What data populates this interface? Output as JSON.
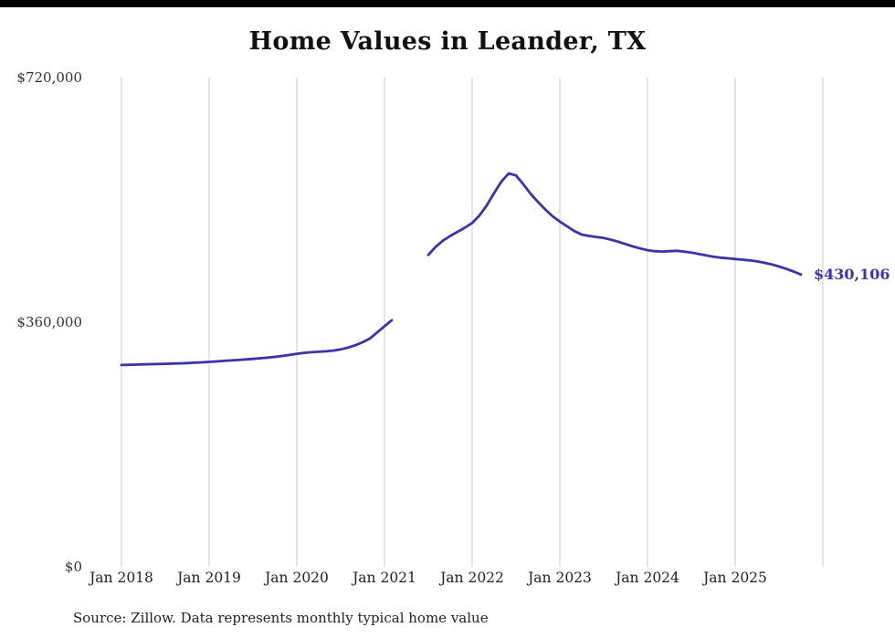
{
  "page": {
    "background": "#ffffff"
  },
  "chart": {
    "title": "Home Values in Leander, TX",
    "source_note": "Source: Zillow. Data represents monthly typical home value",
    "end_label": "$430,106",
    "line_color": "#3b32a8",
    "grid_color": "#cccccc",
    "text_color": "#111111"
  },
  "chart_data": {
    "type": "line",
    "title": "Home Values in Leander, TX",
    "series_name": "Monthly typical home value",
    "legend": "none",
    "grid": "vertical-only",
    "ylim": [
      0,
      720000
    ],
    "y_ticks": [
      {
        "label": "$0",
        "value": 0
      },
      {
        "label": "$360,000",
        "value": 360000
      },
      {
        "label": "$720,000",
        "value": 720000
      }
    ],
    "x_ticks": [
      {
        "label": "Jan 2018",
        "month": "2018-01"
      },
      {
        "label": "Jan 2019",
        "month": "2019-01"
      },
      {
        "label": "Jan 2020",
        "month": "2020-01"
      },
      {
        "label": "Jan 2021",
        "month": "2021-01"
      },
      {
        "label": "Jan 2022",
        "month": "2022-01"
      },
      {
        "label": "Jan 2023",
        "month": "2023-01"
      },
      {
        "label": "Jan 2024",
        "month": "2024-01"
      },
      {
        "label": "Jan 2025",
        "month": "2025-01"
      }
    ],
    "gridlines_at": [
      "2018-01",
      "2019-01",
      "2020-01",
      "2021-01",
      "2022-01",
      "2023-01",
      "2024-01",
      "2025-01",
      "2026-01"
    ],
    "months": [
      "2018-01",
      "2018-02",
      "2018-03",
      "2018-04",
      "2018-05",
      "2018-06",
      "2018-07",
      "2018-08",
      "2018-09",
      "2018-10",
      "2018-11",
      "2018-12",
      "2019-01",
      "2019-02",
      "2019-03",
      "2019-04",
      "2019-05",
      "2019-06",
      "2019-07",
      "2019-08",
      "2019-09",
      "2019-10",
      "2019-11",
      "2019-12",
      "2020-01",
      "2020-02",
      "2020-03",
      "2020-04",
      "2020-05",
      "2020-06",
      "2020-07",
      "2020-08",
      "2020-09",
      "2020-10",
      "2020-11",
      "2020-12",
      "2021-01",
      "2021-02",
      "2021-03",
      "2021-04",
      "2021-05",
      "2021-06",
      "2021-07",
      "2021-08",
      "2021-09",
      "2021-10",
      "2021-11",
      "2021-12",
      "2022-01",
      "2022-02",
      "2022-03",
      "2022-04",
      "2022-05",
      "2022-06",
      "2022-07",
      "2022-08",
      "2022-09",
      "2022-10",
      "2022-11",
      "2022-12",
      "2023-01",
      "2023-02",
      "2023-03",
      "2023-04",
      "2023-05",
      "2023-06",
      "2023-07",
      "2023-08",
      "2023-09",
      "2023-10",
      "2023-11",
      "2023-12",
      "2024-01",
      "2024-02",
      "2024-03",
      "2024-04",
      "2024-05",
      "2024-06",
      "2024-07",
      "2024-08",
      "2024-09",
      "2024-10",
      "2024-11",
      "2024-12",
      "2025-01",
      "2025-02",
      "2025-03",
      "2025-04",
      "2025-05",
      "2025-06",
      "2025-07",
      "2025-08",
      "2025-09",
      "2025-10"
    ],
    "values": [
      297000,
      297300,
      297600,
      297900,
      298200,
      298500,
      298800,
      299100,
      299400,
      299800,
      300300,
      300900,
      301600,
      302300,
      303000,
      303700,
      304400,
      305200,
      306000,
      306900,
      307900,
      309000,
      310300,
      311800,
      313500,
      314800,
      315800,
      316500,
      317200,
      318200,
      320000,
      322500,
      326000,
      330500,
      336000,
      345000,
      354000,
      363000,
      null,
      null,
      null,
      null,
      459000,
      471000,
      480000,
      487000,
      493000,
      499000,
      506000,
      517000,
      532000,
      550000,
      567000,
      579000,
      576000,
      563000,
      549000,
      537000,
      526000,
      516000,
      508000,
      501000,
      494000,
      489000,
      487000,
      485500,
      484000,
      481500,
      478500,
      475000,
      471500,
      468500,
      466000,
      464500,
      464000,
      464500,
      465000,
      464000,
      462500,
      460500,
      458500,
      456500,
      455000,
      454000,
      453000,
      452000,
      451000,
      449500,
      447500,
      445000,
      442000,
      438500,
      434500,
      430106
    ],
    "final_value": 430106,
    "final_value_label": "$430,106"
  }
}
